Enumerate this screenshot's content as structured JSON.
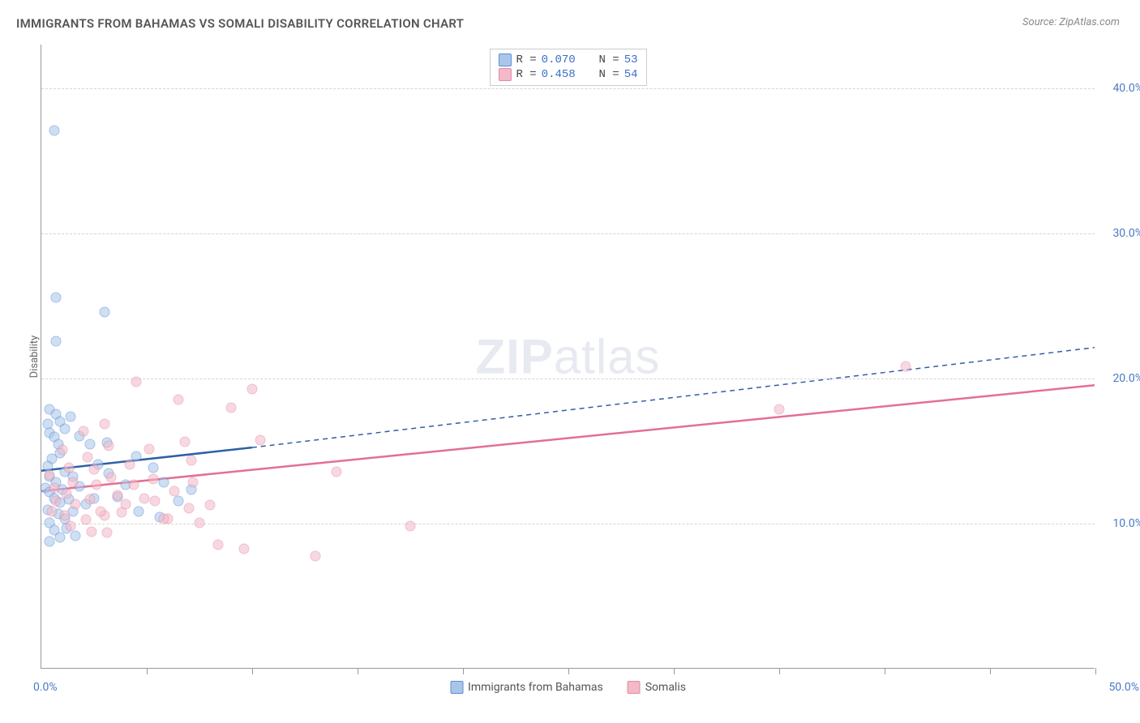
{
  "title": "IMMIGRANTS FROM BAHAMAS VS SOMALI DISABILITY CORRELATION CHART",
  "source": "Source: ZipAtlas.com",
  "watermark_bold": "ZIP",
  "watermark_light": "atlas",
  "chart": {
    "type": "scatter",
    "background_color": "#ffffff",
    "grid_color": "#d5d5d5",
    "axis_color": "#999999",
    "tick_label_color": "#4a7ac7",
    "yaxis_title": "Disability",
    "xlim": [
      0,
      50
    ],
    "ylim": [
      0,
      43
    ],
    "xgrid_ticks": [
      5,
      10,
      15,
      20,
      25,
      30,
      35,
      40,
      45,
      50
    ],
    "ygrid_values": [
      10,
      20,
      30,
      40
    ],
    "ytick_labels": [
      "10.0%",
      "20.0%",
      "30.0%",
      "40.0%"
    ],
    "xlabel_min": "0.0%",
    "xlabel_max": "50.0%",
    "point_radius": 6.5,
    "point_opacity": 0.55,
    "series": [
      {
        "name": "Immigrants from Bahamas",
        "fill_color": "#a9c6ea",
        "stroke_color": "#5a8fd6",
        "line_color": "#2f5fa8",
        "trend_solid": {
          "x1": 0,
          "y1": 13.6,
          "x2": 10,
          "y2": 15.2
        },
        "trend_dash": {
          "x1": 10,
          "y1": 15.2,
          "x2": 50,
          "y2": 22.1
        },
        "R": "0.070",
        "N": "53",
        "points": [
          [
            0.6,
            37.0
          ],
          [
            0.7,
            25.5
          ],
          [
            0.7,
            22.5
          ],
          [
            3.0,
            24.5
          ],
          [
            0.4,
            17.8
          ],
          [
            0.7,
            17.5
          ],
          [
            0.3,
            16.8
          ],
          [
            0.4,
            16.2
          ],
          [
            0.9,
            17.0
          ],
          [
            1.1,
            16.5
          ],
          [
            1.4,
            17.3
          ],
          [
            0.6,
            15.9
          ],
          [
            0.8,
            15.4
          ],
          [
            1.8,
            16.0
          ],
          [
            2.3,
            15.4
          ],
          [
            3.1,
            15.5
          ],
          [
            0.9,
            14.8
          ],
          [
            0.5,
            14.4
          ],
          [
            0.3,
            13.9
          ],
          [
            0.4,
            13.2
          ],
          [
            1.1,
            13.5
          ],
          [
            1.5,
            13.2
          ],
          [
            0.7,
            12.8
          ],
          [
            0.2,
            12.4
          ],
          [
            0.4,
            12.1
          ],
          [
            1.0,
            12.3
          ],
          [
            1.8,
            12.5
          ],
          [
            2.7,
            14.0
          ],
          [
            3.2,
            13.4
          ],
          [
            0.6,
            11.7
          ],
          [
            0.9,
            11.4
          ],
          [
            1.3,
            11.6
          ],
          [
            2.1,
            11.3
          ],
          [
            2.5,
            11.7
          ],
          [
            0.3,
            10.9
          ],
          [
            0.8,
            10.6
          ],
          [
            1.5,
            10.8
          ],
          [
            1.1,
            10.3
          ],
          [
            0.4,
            10.0
          ],
          [
            0.6,
            9.5
          ],
          [
            1.2,
            9.6
          ],
          [
            1.6,
            9.1
          ],
          [
            0.9,
            9.0
          ],
          [
            0.4,
            8.7
          ],
          [
            6.5,
            11.5
          ],
          [
            7.1,
            12.3
          ],
          [
            4.5,
            14.6
          ],
          [
            5.3,
            13.8
          ],
          [
            4.0,
            12.6
          ],
          [
            5.8,
            12.8
          ],
          [
            3.6,
            11.8
          ],
          [
            4.6,
            10.8
          ],
          [
            5.6,
            10.4
          ]
        ]
      },
      {
        "name": "Somalis",
        "fill_color": "#f3b9c8",
        "stroke_color": "#e48aa4",
        "line_color": "#e36f94",
        "trend_solid": {
          "x1": 0,
          "y1": 12.2,
          "x2": 50,
          "y2": 19.5
        },
        "trend_dash": null,
        "R": "0.458",
        "N": "54",
        "points": [
          [
            41.0,
            20.8
          ],
          [
            35.0,
            17.8
          ],
          [
            17.5,
            9.8
          ],
          [
            14.0,
            13.5
          ],
          [
            13.0,
            7.7
          ],
          [
            10.0,
            19.2
          ],
          [
            10.4,
            15.7
          ],
          [
            9.0,
            17.9
          ],
          [
            8.0,
            11.2
          ],
          [
            8.4,
            8.5
          ],
          [
            9.6,
            8.2
          ],
          [
            6.5,
            18.5
          ],
          [
            6.8,
            15.6
          ],
          [
            6.0,
            10.3
          ],
          [
            6.3,
            12.2
          ],
          [
            7.0,
            11.0
          ],
          [
            7.2,
            12.8
          ],
          [
            7.5,
            10.0
          ],
          [
            7.1,
            14.3
          ],
          [
            4.5,
            19.7
          ],
          [
            4.2,
            14.0
          ],
          [
            4.4,
            12.6
          ],
          [
            4.0,
            11.3
          ],
          [
            4.9,
            11.7
          ],
          [
            5.3,
            13.0
          ],
          [
            5.4,
            11.5
          ],
          [
            5.8,
            10.3
          ],
          [
            5.1,
            15.1
          ],
          [
            3.0,
            16.8
          ],
          [
            3.2,
            15.3
          ],
          [
            3.3,
            13.1
          ],
          [
            3.6,
            11.9
          ],
          [
            3.8,
            10.7
          ],
          [
            3.0,
            10.5
          ],
          [
            3.1,
            9.3
          ],
          [
            2.0,
            16.3
          ],
          [
            2.2,
            14.5
          ],
          [
            2.5,
            13.7
          ],
          [
            2.6,
            12.6
          ],
          [
            2.3,
            11.6
          ],
          [
            2.8,
            10.8
          ],
          [
            2.1,
            10.2
          ],
          [
            2.4,
            9.4
          ],
          [
            1.0,
            15.0
          ],
          [
            1.3,
            13.8
          ],
          [
            1.5,
            12.8
          ],
          [
            1.2,
            12.0
          ],
          [
            1.6,
            11.3
          ],
          [
            1.1,
            10.5
          ],
          [
            1.4,
            9.8
          ],
          [
            0.4,
            13.3
          ],
          [
            0.6,
            12.4
          ],
          [
            0.7,
            11.5
          ],
          [
            0.5,
            10.8
          ]
        ]
      }
    ]
  },
  "legend_top_label_R": "R",
  "legend_top_label_N": "N",
  "legend_top_eq": "="
}
